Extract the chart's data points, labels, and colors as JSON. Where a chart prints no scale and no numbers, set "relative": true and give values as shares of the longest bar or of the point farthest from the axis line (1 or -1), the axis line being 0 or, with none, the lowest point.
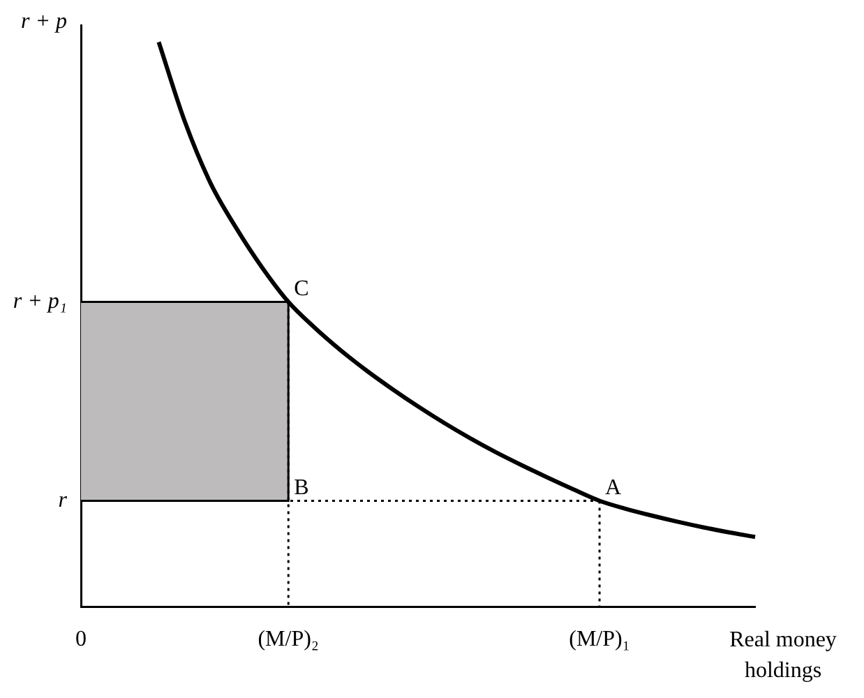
{
  "chart_data": {
    "type": "line",
    "relative": true,
    "xlabel": "Real money holdings",
    "ylabel": "r + p",
    "categories": [
      "0",
      null,
      null,
      null,
      null,
      null,
      null,
      null,
      "(M/P)₂",
      null,
      null,
      null,
      null,
      null,
      null,
      null,
      null,
      null,
      null,
      null,
      "(M/P)₁",
      null,
      null,
      null,
      null,
      null,
      null
    ],
    "series": [
      {
        "color": "#000000",
        "values": [
          null,
          null,
          null,
          1.0,
          0.86,
          0.75,
          0.67,
          0.6,
          0.54,
          0.495,
          0.455,
          0.419,
          0.386,
          0.355,
          0.326,
          0.299,
          0.274,
          0.251,
          0.229,
          0.208,
          0.188,
          0.174,
          0.162,
          0.151,
          0.141,
          0.132,
          0.124
        ]
      }
    ],
    "ref_lines": [
      {
        "axis": "y",
        "value": 0.188,
        "label": "r",
        "line_style": "dotted"
      },
      {
        "axis": "y",
        "value": 0.54,
        "label": "r + p₁",
        "line_style": "solid"
      }
    ],
    "bands": [
      {
        "axis": "y",
        "from": 0.188,
        "to": 0.54,
        "color": "#bdbbbc"
      }
    ],
    "annotations": [
      {
        "text": "C",
        "x": "(M/P)₂",
        "y": 0.54
      },
      {
        "text": "B",
        "x": "(M/P)₂",
        "y": 0.188
      },
      {
        "text": "A",
        "x": "(M/P)₁",
        "y": 0.188
      }
    ],
    "grid": false,
    "legend": false,
    "marker": "none",
    "line_style": "solid"
  }
}
